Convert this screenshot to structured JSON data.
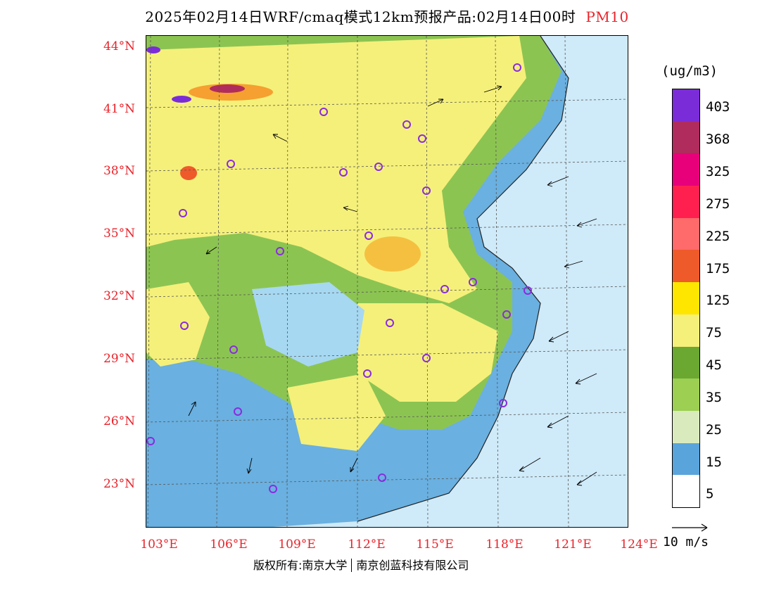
{
  "title": {
    "main": "2025年02月14日WRF/cmaq模式12km预报产品:02月14日00时",
    "pollutant": "PM10"
  },
  "lat_labels": [
    "44°N",
    "41°N",
    "38°N",
    "35°N",
    "32°N",
    "29°N",
    "26°N",
    "23°N"
  ],
  "lon_labels": [
    "103°E",
    "106°E",
    "109°E",
    "112°E",
    "115°E",
    "118°E",
    "121°E",
    "124°E"
  ],
  "colorbar": {
    "unit": "(ug/m3)",
    "labels": [
      "403",
      "368",
      "325",
      "275",
      "225",
      "175",
      "125",
      "75",
      "45",
      "35",
      "25",
      "15",
      "5"
    ],
    "colors": [
      "#7b2cd9",
      "#b02c5c",
      "#e8007a",
      "#ff0000",
      "#ff2255",
      "#ff6a6a",
      "#ef5a2a",
      "#ff8c00",
      "#f8b030",
      "#ffe600",
      "#f0f050",
      "#6aa832",
      "#9ccf52"
    ]
  },
  "wind_legend": {
    "label": "10 m/s"
  },
  "copyright": {
    "left": "版权所有:南京大学",
    "right": "南京创蓝科技有限公司"
  },
  "colors": {
    "sea_light": "#d2ecf8",
    "sea_mid": "#a6d8f2",
    "blue": "#5aa4dc",
    "green": "#8cc452",
    "yellow": "#f5f07a",
    "orange": "#f5c040"
  }
}
